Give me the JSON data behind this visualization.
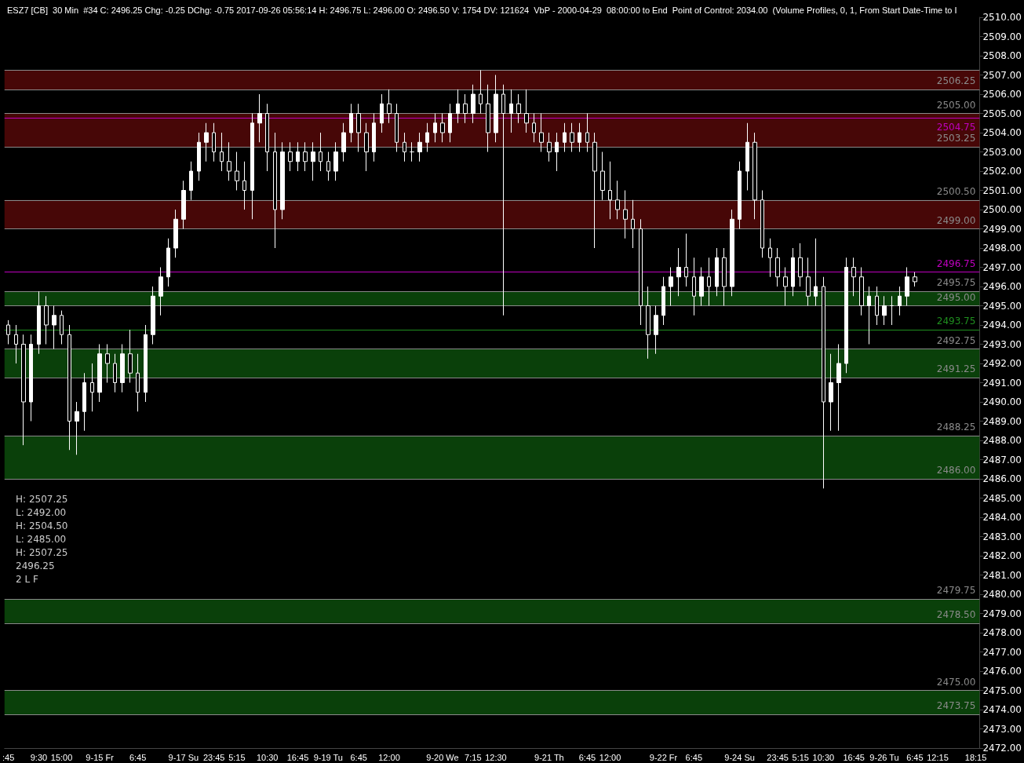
{
  "chart_data": {
    "type": "candlestick",
    "title": "ESZ7 [CB]  30 Min  #34 C: 2496.25 Chg: -0.25 DChg: -0.75 2017-09-26 05:56:14 H: 2496.75 L: 2496.00 O: 2496.50 V: 1754 DV: 121624  VbP - 2000-04-29  08:00:00 to End  Point of Control: 2034.00  (Volume Profiles, 0, 1, From Start Date-Time to I",
    "categories": [
      ":45",
      null,
      null,
      null,
      "9:30",
      null,
      null,
      "15:00",
      null,
      null,
      null,
      null,
      "9-15 Fr",
      null,
      null,
      null,
      null,
      "6:45",
      null,
      null,
      null,
      null,
      null,
      "9-17 Su",
      null,
      null,
      null,
      "23:45",
      null,
      null,
      "5:15",
      null,
      null,
      null,
      "10:30",
      null,
      null,
      null,
      "16:45",
      null,
      null,
      null,
      "9-19 Tu",
      null,
      null,
      null,
      "6:45",
      null,
      null,
      null,
      "12:00",
      null,
      null,
      null,
      null,
      null,
      null,
      "9-20 We",
      null,
      null,
      null,
      "7:15",
      null,
      null,
      "12:30",
      null,
      null,
      null,
      null,
      null,
      null,
      "9-21 Th",
      null,
      null,
      null,
      null,
      "6:45",
      null,
      null,
      "12:00",
      null,
      null,
      null,
      null,
      null,
      null,
      "9-22 Fr",
      null,
      null,
      null,
      "6:45",
      null,
      null,
      null,
      null,
      null,
      "9-24 Su",
      null,
      null,
      null,
      null,
      "23:45",
      null,
      null,
      "5:15",
      null,
      null,
      "10:30",
      null,
      null,
      null,
      "16:45",
      null,
      null,
      null,
      "9-26 Tu",
      null,
      null,
      null,
      "6:45",
      null,
      null,
      "12:15",
      null,
      null,
      null,
      null,
      "18:15"
    ],
    "series": [
      {
        "color": "#ffffff",
        "ohlc": [
          [
            2494,
            2494.25,
            2493,
            2493.5
          ],
          [
            2493.5,
            2494,
            2492,
            2493
          ],
          [
            2493,
            2493.5,
            2487.75,
            2490
          ],
          [
            2490,
            2493.5,
            2489,
            2493
          ],
          [
            2493,
            2495.75,
            2492.5,
            2495
          ],
          [
            2495,
            2495.5,
            2493,
            2494
          ],
          [
            2494,
            2495,
            2492.75,
            2494.5
          ],
          [
            2494.5,
            2494.75,
            2493,
            2493.5
          ],
          [
            2493.5,
            2494,
            2487.5,
            2489
          ],
          [
            2489,
            2490,
            2487.25,
            2489.5
          ],
          [
            2489.5,
            2491.5,
            2488.5,
            2491
          ],
          [
            2491,
            2492,
            2489.5,
            2490.5
          ],
          [
            2490.5,
            2493,
            2490,
            2492.5
          ],
          [
            2492.5,
            2493,
            2491,
            2492
          ],
          [
            2492,
            2492.5,
            2490.5,
            2491
          ],
          [
            2491,
            2493,
            2490.5,
            2492.5
          ],
          [
            2492.5,
            2493.75,
            2491,
            2491.5
          ],
          [
            2491.5,
            2492.5,
            2489.5,
            2490.5
          ],
          [
            2490.5,
            2494,
            2490,
            2493.5
          ],
          [
            2493.5,
            2496,
            2493,
            2495.5
          ],
          [
            2495.5,
            2497,
            2494.5,
            2496.5
          ],
          [
            2496.5,
            2498.5,
            2496,
            2498
          ],
          [
            2498,
            2500,
            2497.5,
            2499.5
          ],
          [
            2499.5,
            2501.5,
            2499,
            2501
          ],
          [
            2501,
            2502.5,
            2500.5,
            2502
          ],
          [
            2502,
            2504,
            2501.5,
            2503.5
          ],
          [
            2503.5,
            2504.5,
            2502.5,
            2504
          ],
          [
            2504,
            2504.5,
            2502.5,
            2503
          ],
          [
            2503,
            2504,
            2502,
            2502.5
          ],
          [
            2502.5,
            2503.5,
            2501.5,
            2502
          ],
          [
            2502,
            2503,
            2501,
            2501.5
          ],
          [
            2501.5,
            2502.5,
            2500,
            2501
          ],
          [
            2501,
            2505,
            2499.5,
            2504.5
          ],
          [
            2504.5,
            2506,
            2503.5,
            2505
          ],
          [
            2505,
            2505.5,
            2502,
            2503
          ],
          [
            2503,
            2504,
            2498,
            2500
          ],
          [
            2500,
            2503.5,
            2499.5,
            2503
          ],
          [
            2503,
            2503.5,
            2502,
            2502.5
          ],
          [
            2502.5,
            2503.5,
            2502,
            2503
          ],
          [
            2503,
            2503.5,
            2502,
            2502.5
          ],
          [
            2502.5,
            2503.5,
            2501.5,
            2503
          ],
          [
            2503,
            2504,
            2502,
            2502.5
          ],
          [
            2502.5,
            2503,
            2501.5,
            2502
          ],
          [
            2502,
            2503.5,
            2501.5,
            2503
          ],
          [
            2503,
            2504.5,
            2502.5,
            2504
          ],
          [
            2504,
            2505.5,
            2503.5,
            2505
          ],
          [
            2505,
            2505.5,
            2503,
            2504
          ],
          [
            2504,
            2504.5,
            2502,
            2503
          ],
          [
            2503,
            2505,
            2502.5,
            2504.5
          ],
          [
            2504.5,
            2506,
            2504,
            2505.5
          ],
          [
            2505.5,
            2506.25,
            2504.5,
            2505
          ],
          [
            2505,
            2505.5,
            2503,
            2503.5
          ],
          [
            2503.5,
            2504,
            2502.5,
            2503
          ],
          [
            2503,
            2503.5,
            2502.5,
            2503
          ],
          [
            2503,
            2504,
            2502.5,
            2503.5
          ],
          [
            2503.5,
            2504.5,
            2503,
            2504
          ],
          [
            2504,
            2505,
            2503.5,
            2504.5
          ],
          [
            2504.5,
            2505,
            2503.5,
            2504
          ],
          [
            2504,
            2505.5,
            2503.5,
            2505
          ],
          [
            2505,
            2506.25,
            2504.5,
            2505.5
          ],
          [
            2505.5,
            2506,
            2504.5,
            2505
          ],
          [
            2505,
            2506.5,
            2504.5,
            2506
          ],
          [
            2506,
            2507.25,
            2505,
            2505.5
          ],
          [
            2505.5,
            2506.5,
            2503,
            2504
          ],
          [
            2504,
            2507,
            2503.5,
            2506
          ],
          [
            2506,
            2506.5,
            2494.5,
            2505
          ],
          [
            2505,
            2506.25,
            2504,
            2505.5
          ],
          [
            2505.5,
            2506,
            2504.5,
            2505
          ],
          [
            2505,
            2506.25,
            2504,
            2504.5
          ],
          [
            2504.5,
            2505,
            2503.5,
            2504
          ],
          [
            2504,
            2505,
            2503,
            2503.5
          ],
          [
            2503.5,
            2504,
            2502.5,
            2503
          ],
          [
            2503,
            2504,
            2502,
            2503.5
          ],
          [
            2503.5,
            2504.5,
            2503,
            2504
          ],
          [
            2504,
            2504.5,
            2503,
            2503.5
          ],
          [
            2503.5,
            2504.5,
            2503,
            2504
          ],
          [
            2504,
            2505,
            2503,
            2503.5
          ],
          [
            2503.5,
            2504,
            2498,
            2502
          ],
          [
            2502,
            2503,
            2500.5,
            2501
          ],
          [
            2501,
            2502.5,
            2499.5,
            2500.5
          ],
          [
            2500.5,
            2501.5,
            2499.5,
            2500
          ],
          [
            2500,
            2501,
            2498.5,
            2499.5
          ],
          [
            2499.5,
            2500.5,
            2498,
            2499
          ],
          [
            2499,
            2499.5,
            2494,
            2495
          ],
          [
            2495,
            2496,
            2492.25,
            2493.5
          ],
          [
            2493.5,
            2495,
            2492.5,
            2494.5
          ],
          [
            2494.5,
            2496.5,
            2494,
            2496
          ],
          [
            2496,
            2497,
            2495,
            2496.5
          ],
          [
            2496.5,
            2498,
            2495.5,
            2497
          ],
          [
            2497,
            2498.75,
            2496,
            2496.5
          ],
          [
            2496.5,
            2497.5,
            2494.5,
            2495.5
          ],
          [
            2495.5,
            2497,
            2495,
            2496.5
          ],
          [
            2496.5,
            2497.5,
            2495,
            2496
          ],
          [
            2496,
            2498,
            2495.5,
            2497.5
          ],
          [
            2497.5,
            2498,
            2495,
            2496
          ],
          [
            2496,
            2500,
            2495.5,
            2499.5
          ],
          [
            2499.5,
            2502.5,
            2499,
            2502
          ],
          [
            2502,
            2504.5,
            2501,
            2503.5
          ],
          [
            2503.5,
            2504,
            2499.5,
            2500.5
          ],
          [
            2500.5,
            2501,
            2497.5,
            2498
          ],
          [
            2498,
            2498.5,
            2496.5,
            2497.5
          ],
          [
            2497.5,
            2498,
            2496,
            2496.5
          ],
          [
            2496.5,
            2497,
            2495,
            2496
          ],
          [
            2496,
            2498,
            2495.5,
            2497.5
          ],
          [
            2497.5,
            2498.25,
            2496,
            2496.5
          ],
          [
            2496.5,
            2497.5,
            2495,
            2495.5
          ],
          [
            2495.5,
            2498.5,
            2495,
            2496
          ],
          [
            2496,
            2496.5,
            2485.5,
            2490
          ],
          [
            2490,
            2492.5,
            2488.5,
            2491
          ],
          [
            2491,
            2493,
            2488.5,
            2492
          ],
          [
            2492,
            2497.5,
            2491.5,
            2497
          ],
          [
            2497,
            2497.5,
            2495.5,
            2496.5
          ],
          [
            2496.5,
            2497,
            2494.5,
            2495
          ],
          [
            2495,
            2496,
            2493,
            2495.5
          ],
          [
            2495.5,
            2496,
            2494,
            2494.5
          ],
          [
            2494.5,
            2495.5,
            2494,
            2495
          ],
          [
            2495,
            2495.5,
            2494,
            2495
          ],
          [
            2495,
            2496,
            2494.5,
            2495.5
          ],
          [
            2495.5,
            2497,
            2495,
            2496.5
          ],
          [
            2496.5,
            2496.75,
            2496,
            2496.25
          ],
          null,
          null,
          null,
          null,
          null,
          null,
          null,
          null
        ]
      }
    ],
    "ylim": [
      2472,
      2510
    ],
    "yticks": [
      {
        "value": 2472,
        "label": "2472.00"
      },
      {
        "value": 2473,
        "label": "2473.00"
      },
      {
        "value": 2474,
        "label": "2474.00"
      },
      {
        "value": 2475,
        "label": "2475.00"
      },
      {
        "value": 2476,
        "label": "2476.00"
      },
      {
        "value": 2477,
        "label": "2477.00"
      },
      {
        "value": 2478,
        "label": "2478.00"
      },
      {
        "value": 2479,
        "label": "2479.00"
      },
      {
        "value": 2480,
        "label": "2480.00"
      },
      {
        "value": 2481,
        "label": "2481.00"
      },
      {
        "value": 2482,
        "label": "2482.00"
      },
      {
        "value": 2483,
        "label": "2483.00"
      },
      {
        "value": 2484,
        "label": "2484.00"
      },
      {
        "value": 2485,
        "label": "2485.00"
      },
      {
        "value": 2486,
        "label": "2486.00"
      },
      {
        "value": 2487,
        "label": "2487.00"
      },
      {
        "value": 2488,
        "label": "2488.00"
      },
      {
        "value": 2489,
        "label": "2489.00"
      },
      {
        "value": 2490,
        "label": "2490.00"
      },
      {
        "value": 2491,
        "label": "2491.00"
      },
      {
        "value": 2492,
        "label": "2492.00"
      },
      {
        "value": 2493,
        "label": "2493.00"
      },
      {
        "value": 2494,
        "label": "2494.00"
      },
      {
        "value": 2495,
        "label": "2495.00"
      },
      {
        "value": 2496,
        "label": "2496.00"
      },
      {
        "value": 2497,
        "label": "2497.00"
      },
      {
        "value": 2498,
        "label": "2498.00"
      },
      {
        "value": 2499,
        "label": "2499.00"
      },
      {
        "value": 2500,
        "label": "2500.00"
      },
      {
        "value": 2501,
        "label": "2501.00"
      },
      {
        "value": 2502,
        "label": "2502.00"
      },
      {
        "value": 2503,
        "label": "2503.00"
      },
      {
        "value": 2504,
        "label": "2504.00"
      },
      {
        "value": 2505,
        "label": "2505.00"
      },
      {
        "value": 2506,
        "label": "2506.00"
      },
      {
        "value": 2507,
        "label": "2507.00"
      },
      {
        "value": 2508,
        "label": "2508.00"
      },
      {
        "value": 2509,
        "label": "2509.00"
      },
      {
        "value": 2510,
        "label": "2510.00"
      }
    ],
    "grid": false,
    "bands": [
      {
        "axis": "y",
        "from": 2506.25,
        "to": 2507.25,
        "color": "#470707"
      },
      {
        "axis": "y",
        "from": 2503.25,
        "to": 2505,
        "color": "#470707"
      },
      {
        "axis": "y",
        "from": 2499,
        "to": 2500.5,
        "color": "#470707"
      },
      {
        "axis": "y",
        "from": 2495,
        "to": 2495.75,
        "color": "#0a400a"
      },
      {
        "axis": "y",
        "from": 2491.25,
        "to": 2492.75,
        "color": "#0a400a"
      },
      {
        "axis": "y",
        "from": 2486,
        "to": 2488.25,
        "color": "#0a400a"
      },
      {
        "axis": "y",
        "from": 2478.5,
        "to": 2479.75,
        "color": "#0a400a"
      },
      {
        "axis": "y",
        "from": 2473.75,
        "to": 2475,
        "color": "#0a400a"
      }
    ],
    "ref_lines": [
      {
        "axis": "y",
        "value": 2507.25,
        "color": "#8a8a8a"
      },
      {
        "axis": "y",
        "value": 2506.25,
        "label": "2506.25",
        "color": "#8a8a8a"
      },
      {
        "axis": "y",
        "value": 2505,
        "label": "2505.00",
        "color": "#8a8a8a"
      },
      {
        "axis": "y",
        "value": 2503.25,
        "label": "2503.25",
        "color": "#8a8a8a"
      },
      {
        "axis": "y",
        "value": 2500.5,
        "label": "2500.50",
        "color": "#8a8a8a"
      },
      {
        "axis": "y",
        "value": 2499,
        "label": "2499.00",
        "color": "#8a8a8a"
      },
      {
        "axis": "y",
        "value": 2495.75,
        "label": "2495.75",
        "color": "#8a8a8a"
      },
      {
        "axis": "y",
        "value": 2495,
        "label": "2495.00",
        "color": "#8a8a8a"
      },
      {
        "axis": "y",
        "value": 2492.75,
        "label": "2492.75",
        "color": "#8a8a8a"
      },
      {
        "axis": "y",
        "value": 2491.25,
        "label": "2491.25",
        "color": "#8a8a8a"
      },
      {
        "axis": "y",
        "value": 2488.25,
        "label": "2488.25",
        "color": "#8a8a8a"
      },
      {
        "axis": "y",
        "value": 2486,
        "label": "2486.00",
        "color": "#8a8a8a"
      },
      {
        "axis": "y",
        "value": 2479.75,
        "label": "2479.75",
        "color": "#8a8a8a"
      },
      {
        "axis": "y",
        "value": 2478.5,
        "label": "2478.50",
        "color": "#8a8a8a"
      },
      {
        "axis": "y",
        "value": 2475,
        "label": "2475.00",
        "color": "#8a8a8a"
      },
      {
        "axis": "y",
        "value": 2473.75,
        "label": "2473.75",
        "color": "#8a8a8a"
      },
      {
        "axis": "y",
        "value": 2493.75,
        "label": "2493.75",
        "color": "#1f8f1f"
      },
      {
        "axis": "y",
        "value": 2504.75,
        "label": "2504.75",
        "color": "#c000c0"
      },
      {
        "axis": "y",
        "value": 2496.75,
        "label": "2496.75",
        "color": "#c000c0"
      }
    ],
    "annotations": [
      "H: 2507.25",
      "L: 2492.00",
      "H: 2504.50",
      "L: 2485.00",
      "H: 2507.25",
      "2496.25",
      "2 L F"
    ]
  }
}
